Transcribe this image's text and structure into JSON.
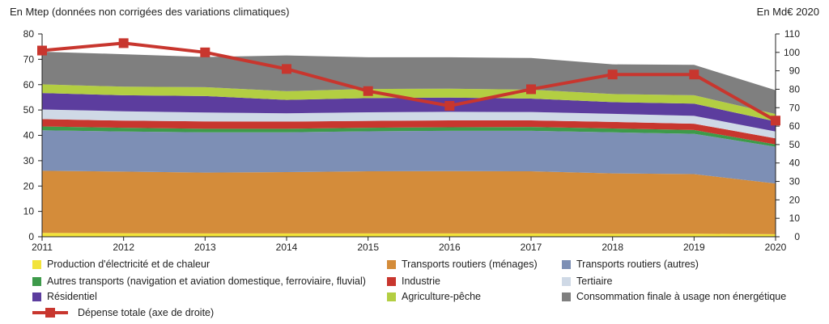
{
  "chart_data": {
    "type": "area",
    "left_axis_title": "En Mtep (données non corrigées des variations climatiques)",
    "right_axis_title": "En Md€ 2020",
    "categories": [
      "2011",
      "2012",
      "2013",
      "2014",
      "2015",
      "2016",
      "2017",
      "2018",
      "2019",
      "2020"
    ],
    "left_ylim": [
      0,
      80
    ],
    "left_ticks": [
      "0",
      "10",
      "20",
      "30",
      "40",
      "50",
      "60",
      "70",
      "80"
    ],
    "right_ylim": [
      0,
      110
    ],
    "right_ticks": [
      "0",
      "10",
      "20",
      "30",
      "40",
      "50",
      "60",
      "70",
      "80",
      "90",
      "100",
      "110"
    ],
    "series": [
      {
        "name": "Production d'électricité et de chaleur",
        "color": "#f2e33a",
        "values": [
          1.5,
          1.4,
          1.3,
          1.3,
          1.3,
          1.3,
          1.3,
          1.2,
          1.2,
          1.0
        ]
      },
      {
        "name": "Transports routiers (ménages)",
        "color": "#d48c3a",
        "values": [
          24.5,
          24.3,
          24.0,
          24.2,
          24.5,
          24.6,
          24.5,
          23.8,
          23.5,
          20.0
        ]
      },
      {
        "name": "Transports routiers (autres)",
        "color": "#7d8fb5",
        "values": [
          16.0,
          15.8,
          15.9,
          15.7,
          15.8,
          15.9,
          16.0,
          16.2,
          15.9,
          14.5
        ]
      },
      {
        "name": "Autres transports (navigation et aviation domestique, ferroviaire, fluvial)",
        "color": "#3d9a4a",
        "values": [
          1.5,
          1.5,
          1.4,
          1.4,
          1.4,
          1.4,
          1.5,
          1.5,
          1.5,
          0.9
        ]
      },
      {
        "name": "Industrie",
        "color": "#c8362e",
        "values": [
          2.9,
          2.8,
          2.9,
          2.8,
          2.7,
          2.7,
          2.6,
          2.6,
          2.5,
          2.4
        ]
      },
      {
        "name": "Tertiaire",
        "color": "#cfd9e6",
        "values": [
          3.8,
          3.7,
          3.5,
          3.3,
          3.4,
          3.4,
          3.3,
          3.2,
          3.1,
          2.7
        ]
      },
      {
        "name": "Résidentiel",
        "color": "#5c3d9e",
        "values": [
          6.5,
          6.3,
          6.5,
          5.3,
          5.6,
          5.6,
          5.3,
          4.6,
          4.8,
          4.0
        ]
      },
      {
        "name": "Agriculture-pêche",
        "color": "#b3ce42",
        "values": [
          3.4,
          3.4,
          3.5,
          3.4,
          3.6,
          3.5,
          3.5,
          3.2,
          3.3,
          2.9
        ]
      },
      {
        "name": "Consommation finale à usage non énergétique",
        "color": "#7f7f7f",
        "values": [
          12.9,
          12.8,
          11.9,
          14.1,
          12.5,
          12.4,
          12.5,
          11.7,
          12.0,
          9.4
        ]
      }
    ],
    "line_series": {
      "name": "Dépense totale (axe de droite)",
      "color": "#c8362e",
      "axis": "right",
      "values": [
        101,
        105,
        100,
        91,
        79,
        71,
        80,
        88,
        88,
        63
      ]
    },
    "legend_position": "bottom"
  }
}
